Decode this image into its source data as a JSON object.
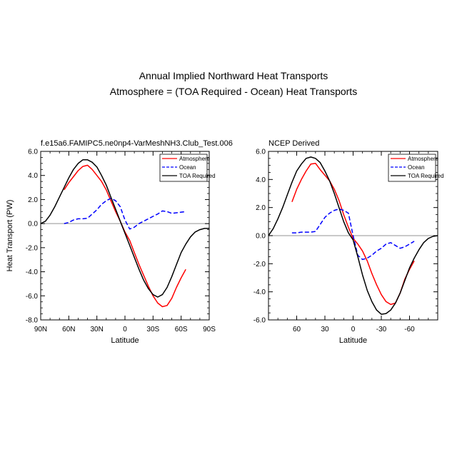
{
  "figure": {
    "title_line1": "Annual Implied Northward Heat Transports",
    "title_line2": "Atmosphere = (TOA Required - Ocean) Heat Transports"
  },
  "colors": {
    "atmosphere": "#ff0000",
    "ocean": "#0000ff",
    "toa": "#000000",
    "zero_line": "#a9a9a9"
  },
  "chart_data": [
    {
      "type": "line",
      "title": "f.e15a6.FAMIPC5.ne0np4-VarMeshNH3.Club_Test.006",
      "xlabel": "Latitude",
      "ylabel": "Heat Transport (PW)",
      "xlim": [
        90,
        -90
      ],
      "ylim": [
        -8,
        6
      ],
      "x_ticks": [
        90,
        60,
        30,
        0,
        -30,
        -60,
        -90
      ],
      "x_tick_labels": [
        "90N",
        "60N",
        "30N",
        "0",
        "30S",
        "60S",
        "90S"
      ],
      "y_ticks": [
        6,
        4,
        2,
        0,
        -2,
        -4,
        -6,
        -8
      ],
      "y_tick_labels": [
        "6.0",
        "4.0",
        "2.0",
        "0.0",
        "-2.0",
        "-4.0",
        "-6.0",
        "-8.0"
      ],
      "legend": [
        "Atmosphere",
        "Ocean",
        "TOA Required"
      ],
      "legend_position": "top-right",
      "series": [
        {
          "name": "Atmosphere",
          "key": "atmosphere",
          "dash": "",
          "x": [
            65,
            60,
            55,
            50,
            45,
            40,
            35,
            30,
            25,
            20,
            15,
            10,
            5,
            0,
            -5,
            -10,
            -15,
            -20,
            -25,
            -30,
            -35,
            -40,
            -45,
            -50,
            -55,
            -60,
            -65
          ],
          "y": [
            2.8,
            3.4,
            3.9,
            4.4,
            4.75,
            4.85,
            4.5,
            4.0,
            3.5,
            2.8,
            1.9,
            1.0,
            0.2,
            -0.7,
            -1.4,
            -2.4,
            -3.4,
            -4.3,
            -5.2,
            -6.0,
            -6.6,
            -6.9,
            -6.8,
            -6.2,
            -5.3,
            -4.5,
            -3.8
          ]
        },
        {
          "name": "Ocean",
          "key": "ocean",
          "dash": "6,3",
          "x": [
            65,
            60,
            55,
            50,
            45,
            40,
            35,
            30,
            25,
            20,
            15,
            10,
            5,
            0,
            -5,
            -10,
            -15,
            -20,
            -25,
            -30,
            -35,
            -40,
            -45,
            -50,
            -55,
            -60,
            -65
          ],
          "y": [
            0.0,
            0.1,
            0.3,
            0.4,
            0.4,
            0.45,
            0.8,
            1.15,
            1.6,
            1.9,
            2.1,
            1.9,
            1.4,
            0.3,
            -0.45,
            -0.3,
            0.0,
            0.2,
            0.4,
            0.6,
            0.8,
            1.05,
            1.0,
            0.85,
            0.9,
            0.95,
            1.0
          ]
        },
        {
          "name": "TOA Required",
          "key": "toa",
          "dash": "",
          "x": [
            90,
            85,
            80,
            75,
            70,
            65,
            60,
            55,
            50,
            45,
            40,
            35,
            30,
            25,
            20,
            15,
            10,
            5,
            0,
            -5,
            -10,
            -15,
            -20,
            -25,
            -30,
            -35,
            -40,
            -45,
            -50,
            -55,
            -60,
            -65,
            -70,
            -75,
            -80,
            -85,
            -90
          ],
          "y": [
            0.0,
            0.2,
            0.7,
            1.4,
            2.2,
            3.0,
            3.8,
            4.5,
            5.0,
            5.3,
            5.3,
            5.1,
            4.7,
            4.0,
            3.2,
            2.2,
            1.2,
            0.2,
            -0.8,
            -1.8,
            -2.8,
            -3.8,
            -4.7,
            -5.4,
            -5.9,
            -6.1,
            -5.9,
            -5.3,
            -4.4,
            -3.4,
            -2.4,
            -1.7,
            -1.1,
            -0.7,
            -0.5,
            -0.4,
            -0.4
          ]
        }
      ]
    },
    {
      "type": "line",
      "title": "NCEP Derived",
      "xlabel": "Latitude",
      "ylabel": "",
      "xlim": [
        90,
        -90
      ],
      "ylim": [
        -6,
        6
      ],
      "x_ticks": [
        60,
        30,
        0,
        -30,
        -60
      ],
      "x_tick_labels": [
        "60",
        "30",
        "0",
        "-30",
        "-60"
      ],
      "y_ticks": [
        6,
        4,
        2,
        0,
        -2,
        -4,
        -6
      ],
      "y_tick_labels": [
        "6.0",
        "4.0",
        "2.0",
        "0.0",
        "-2.0",
        "-4.0",
        "-6.0"
      ],
      "legend": [
        "Atmosphere",
        "Ocean",
        "TOA Required"
      ],
      "legend_position": "top-right",
      "series": [
        {
          "name": "Atmosphere",
          "key": "atmosphere",
          "dash": "",
          "x": [
            65,
            60,
            55,
            50,
            45,
            40,
            35,
            30,
            25,
            20,
            15,
            10,
            5,
            0,
            -5,
            -10,
            -15,
            -20,
            -25,
            -30,
            -35,
            -40,
            -45,
            -50,
            -55,
            -60,
            -65
          ],
          "y": [
            2.4,
            3.3,
            4.0,
            4.6,
            5.1,
            5.15,
            4.7,
            4.3,
            3.9,
            3.3,
            2.5,
            1.5,
            0.6,
            -0.2,
            -0.6,
            -1.1,
            -1.8,
            -2.7,
            -3.5,
            -4.2,
            -4.7,
            -4.9,
            -4.8,
            -4.1,
            -3.1,
            -2.4,
            -1.8
          ]
        },
        {
          "name": "Ocean",
          "key": "ocean",
          "dash": "6,3",
          "x": [
            65,
            60,
            55,
            50,
            45,
            40,
            35,
            30,
            25,
            20,
            15,
            10,
            5,
            0,
            -5,
            -10,
            -15,
            -20,
            -25,
            -30,
            -35,
            -40,
            -45,
            -50,
            -55,
            -60,
            -65
          ],
          "y": [
            0.2,
            0.2,
            0.25,
            0.25,
            0.25,
            0.3,
            0.8,
            1.3,
            1.6,
            1.8,
            1.9,
            1.8,
            1.6,
            0.0,
            -1.4,
            -1.7,
            -1.6,
            -1.4,
            -1.1,
            -0.9,
            -0.6,
            -0.5,
            -0.7,
            -0.9,
            -0.8,
            -0.6,
            -0.4
          ]
        },
        {
          "name": "TOA Required",
          "key": "toa",
          "dash": "",
          "x": [
            90,
            85,
            80,
            75,
            70,
            65,
            60,
            55,
            50,
            45,
            40,
            35,
            30,
            25,
            20,
            15,
            10,
            5,
            0,
            -5,
            -10,
            -15,
            -20,
            -25,
            -30,
            -35,
            -40,
            -45,
            -50,
            -55,
            -60,
            -65,
            -70,
            -75,
            -80,
            -85,
            -90
          ],
          "y": [
            0.0,
            0.5,
            1.2,
            2.0,
            2.9,
            3.8,
            4.6,
            5.1,
            5.5,
            5.6,
            5.5,
            5.2,
            4.6,
            3.9,
            3.0,
            2.0,
            1.0,
            0.2,
            -0.3,
            -1.5,
            -2.8,
            -3.9,
            -4.7,
            -5.3,
            -5.6,
            -5.55,
            -5.3,
            -4.8,
            -4.1,
            -3.2,
            -2.3,
            -1.6,
            -1.0,
            -0.5,
            -0.2,
            -0.05,
            0.0
          ]
        }
      ]
    }
  ]
}
